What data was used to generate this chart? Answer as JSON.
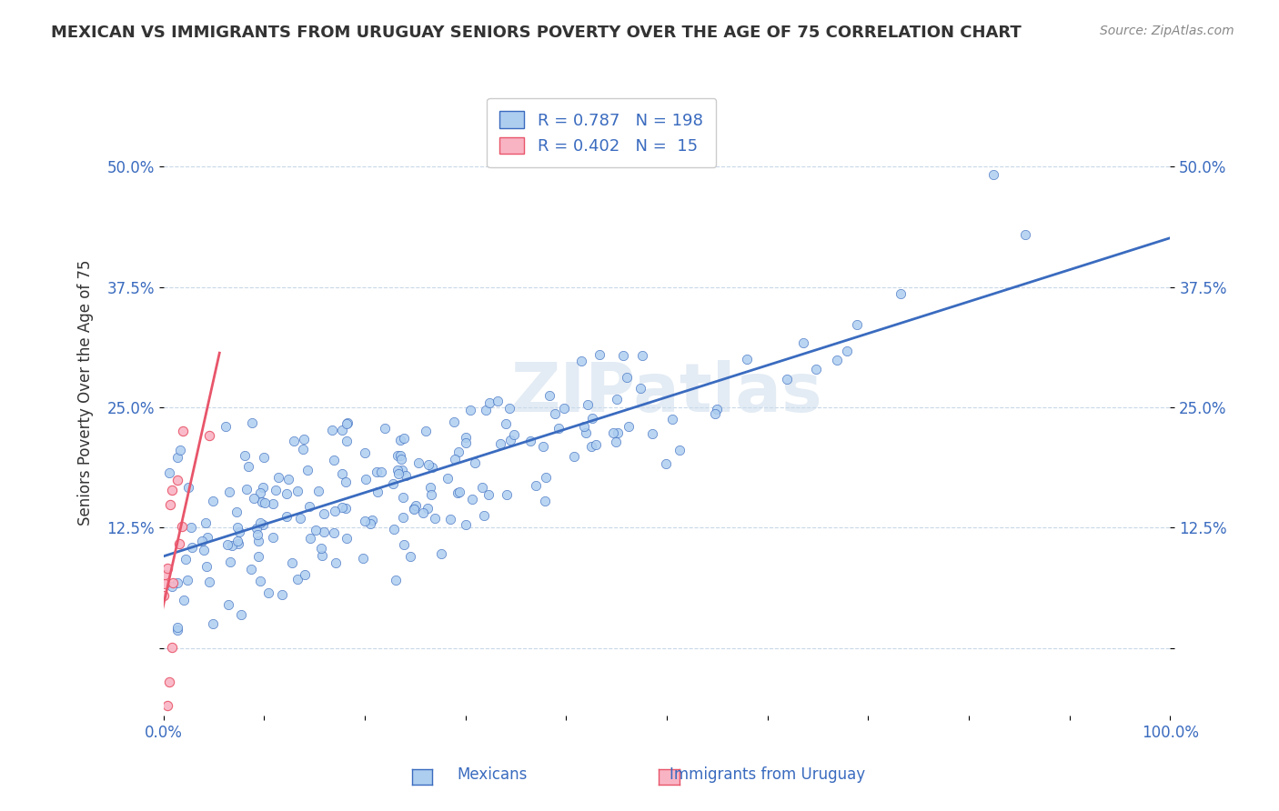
{
  "title": "MEXICAN VS IMMIGRANTS FROM URUGUAY SENIORS POVERTY OVER THE AGE OF 75 CORRELATION CHART",
  "source": "Source: ZipAtlas.com",
  "ylabel": "Seniors Poverty Over the Age of 75",
  "xlim": [
    0.0,
    1.0
  ],
  "ylim": [
    -0.07,
    0.6
  ],
  "xtick_positions": [
    0.0,
    0.1,
    0.2,
    0.3,
    0.4,
    0.5,
    0.6,
    0.7,
    0.8,
    0.9,
    1.0
  ],
  "xtick_labels": [
    "0.0%",
    "",
    "",
    "",
    "",
    "",
    "",
    "",
    "",
    "",
    "100.0%"
  ],
  "ytick_positions": [
    0.0,
    0.125,
    0.25,
    0.375,
    0.5
  ],
  "ytick_labels": [
    "",
    "12.5%",
    "25.0%",
    "37.5%",
    "50.0%"
  ],
  "R_mexican": 0.787,
  "N_mexican": 198,
  "R_uruguay": 0.402,
  "N_uruguay": 15,
  "scatter_color_mexican": "#aecef0",
  "scatter_color_uruguay": "#f9b4c4",
  "line_color_mexican": "#3a6bbf",
  "line_color_uruguay": "#e8556a",
  "legend_color_text": "#3a6bbf",
  "background_color": "#ffffff",
  "grid_color": "#c8d8e8",
  "title_color": "#333333",
  "tick_color": "#3a6bbf",
  "legend_border": "#cccccc"
}
